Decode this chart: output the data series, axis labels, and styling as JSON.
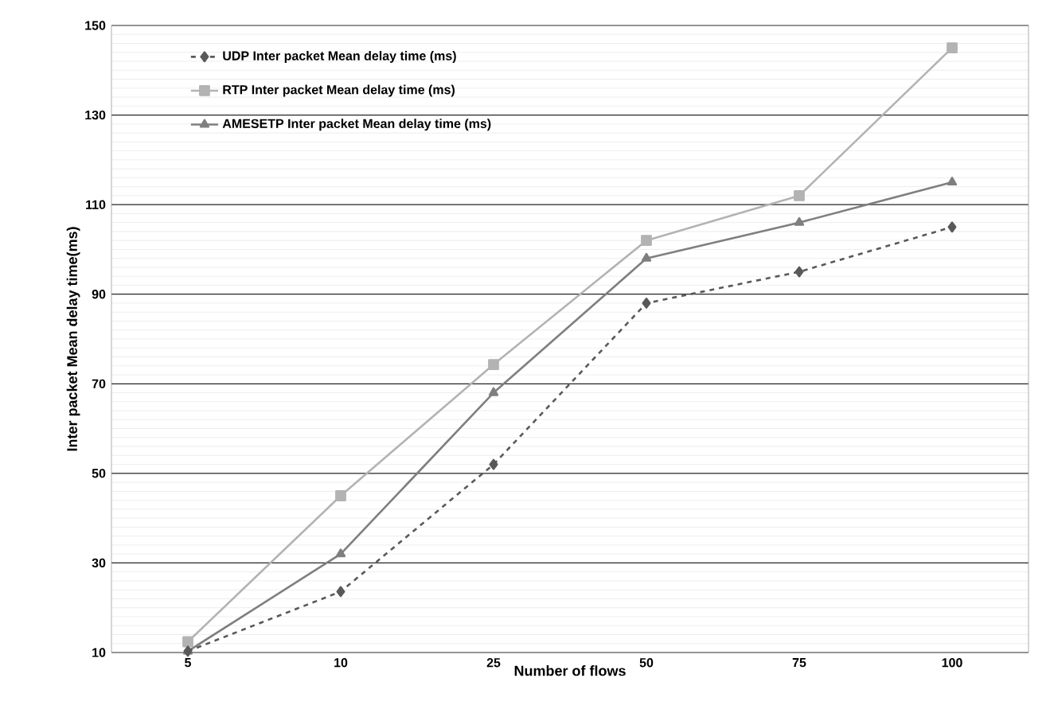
{
  "chart_data": {
    "type": "line",
    "xlabel": "Number of flows",
    "ylabel": "Inter packet Mean delay time(ms)",
    "categories": [
      "5",
      "10",
      "25",
      "50",
      "75",
      "100"
    ],
    "ylim": [
      10,
      150
    ],
    "yticks": [
      10,
      30,
      50,
      70,
      90,
      110,
      130,
      150
    ],
    "grid": "y",
    "legend": "top left",
    "series": [
      {
        "name": "UDP Inter packet Mean delay time (ms)",
        "color": "#595959",
        "marker": "diamond",
        "line_style": "dashed",
        "values": [
          10.3,
          23.6,
          52,
          88,
          95,
          105
        ]
      },
      {
        "name": "RTP Inter packet Mean delay time (ms)",
        "color": "#b3b3b3",
        "marker": "square",
        "line_style": "solid",
        "values": [
          12.4,
          45,
          74.3,
          102,
          112,
          145
        ]
      },
      {
        "name": "AMESETP Inter packet Mean delay time (ms)",
        "color": "#7f7f7f",
        "marker": "triangle",
        "line_style": "solid",
        "values": [
          10.3,
          32,
          68,
          98,
          106,
          115
        ]
      }
    ]
  }
}
